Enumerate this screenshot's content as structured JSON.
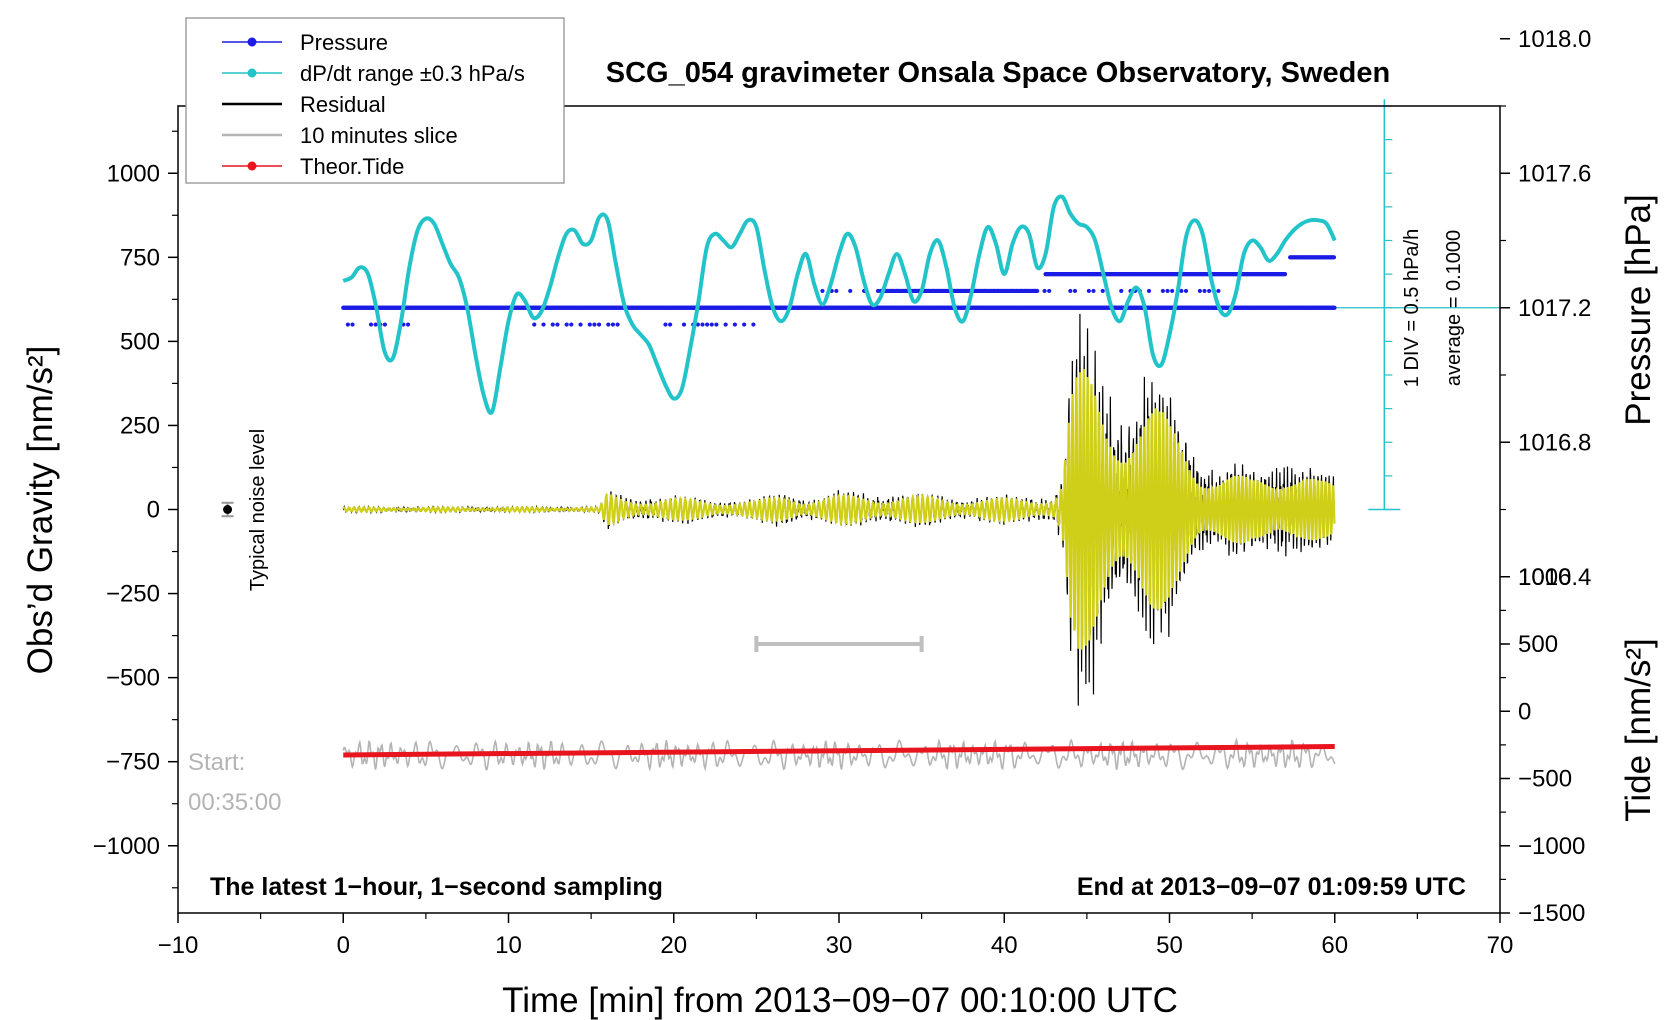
{
  "chart_data": {
    "type": "line",
    "title": "SCG_054 gravimeter Onsala Space Observatory, Sweden",
    "xlabel": "Time [min] from 2013−09−07 00:10:00 UTC",
    "ylabel_left": "Obs’d Gravity [nm/s²]",
    "ylabel_right_top": "Pressure [hPa]",
    "ylabel_right_bottom": "Tide [nm/s²]",
    "xlim": [
      -10,
      70
    ],
    "ylim": [
      -1200,
      1200
    ],
    "x_ticks": [
      {
        "v": -10,
        "label": "−10"
      },
      {
        "v": 0,
        "label": "0"
      },
      {
        "v": 10,
        "label": "10"
      },
      {
        "v": 20,
        "label": "20"
      },
      {
        "v": 30,
        "label": "30"
      },
      {
        "v": 40,
        "label": "40"
      },
      {
        "v": 50,
        "label": "50"
      },
      {
        "v": 60,
        "label": "60"
      },
      {
        "v": 70,
        "label": "70"
      }
    ],
    "y_ticks_left": [
      {
        "v": 1000,
        "label": "1000"
      },
      {
        "v": 750,
        "label": "750"
      },
      {
        "v": 500,
        "label": "500"
      },
      {
        "v": 250,
        "label": "250"
      },
      {
        "v": 0,
        "label": "0"
      },
      {
        "v": -250,
        "label": "−250"
      },
      {
        "v": -500,
        "label": "−500"
      },
      {
        "v": -750,
        "label": "−750"
      },
      {
        "v": -1000,
        "label": "−1000"
      }
    ],
    "y_ticks_pressure": [
      {
        "v": 1018.0,
        "label": "1018.0"
      },
      {
        "v": 1017.6,
        "label": "1017.6"
      },
      {
        "v": 1017.2,
        "label": "1017.2"
      },
      {
        "v": 1016.8,
        "label": "1016.8"
      },
      {
        "v": 1016.4,
        "label": "1016.4"
      }
    ],
    "pressure_map": {
      "ref_hpa": 1017.2,
      "ref_gravity": 600,
      "gravity_per_hpa": 1000
    },
    "y_ticks_tide": [
      {
        "v": 1000,
        "label": "1000"
      },
      {
        "v": 500,
        "label": "500"
      },
      {
        "v": 0,
        "label": "0"
      },
      {
        "v": -500,
        "label": "−500"
      },
      {
        "v": -1000,
        "label": "−1000"
      },
      {
        "v": -1500,
        "label": "−1500"
      }
    ],
    "tide_map": {
      "tide_zero_gravity": -600,
      "gravity_per_tide": 0.4
    },
    "dpdt_scale": {
      "label": "1 DIV = 0.5 hPa/h",
      "average_label": "average = 0.1000",
      "x": 63,
      "y_bottom": 0,
      "y_top": 1220,
      "reference_level": 600,
      "ticks": [
        0,
        100,
        200,
        300,
        400,
        500,
        600,
        700,
        800,
        900,
        1000,
        1100,
        1200
      ]
    },
    "series": [
      {
        "name": "dP/dt range ±0.3 hPa/s",
        "color": "#22c3c9",
        "x": [
          0,
          0.5,
          1,
          1.5,
          2,
          2.5,
          3,
          3.5,
          4,
          4.5,
          5,
          5.5,
          6,
          6.5,
          7,
          7.5,
          8,
          8.5,
          9,
          9.5,
          10,
          10.5,
          11,
          11.5,
          12,
          12.5,
          13,
          13.5,
          14,
          14.5,
          15,
          15.5,
          16,
          16.5,
          17,
          17.5,
          18,
          18.5,
          19,
          19.5,
          20,
          20.5,
          21,
          21.5,
          22,
          22.5,
          23,
          23.5,
          24,
          24.5,
          25,
          25.5,
          26,
          26.5,
          27,
          27.5,
          28,
          28.5,
          29,
          29.5,
          30,
          30.5,
          31,
          31.5,
          32,
          32.5,
          33,
          33.5,
          34,
          34.5,
          35,
          35.5,
          36,
          36.5,
          37,
          37.5,
          38,
          38.5,
          39,
          39.5,
          40,
          40.5,
          41,
          41.5,
          42,
          42.5,
          43,
          43.5,
          44,
          44.5,
          45,
          45.5,
          46,
          46.5,
          47,
          47.5,
          48,
          48.5,
          49,
          49.5,
          50,
          50.5,
          51,
          51.5,
          52,
          52.5,
          53,
          53.5,
          54,
          54.5,
          55,
          55.5,
          56,
          56.5,
          57,
          57.5,
          58,
          58.5,
          59,
          59.5,
          60
        ],
        "y": [
          680,
          690,
          720,
          700,
          600,
          470,
          450,
          560,
          720,
          830,
          865,
          850,
          790,
          730,
          690,
          600,
          460,
          340,
          290,
          420,
          560,
          640,
          620,
          570,
          590,
          660,
          750,
          820,
          830,
          790,
          800,
          870,
          860,
          730,
          610,
          550,
          520,
          490,
          430,
          370,
          330,
          360,
          480,
          620,
          780,
          820,
          800,
          780,
          820,
          860,
          840,
          710,
          600,
          560,
          600,
          700,
          760,
          670,
          610,
          670,
          760,
          820,
          780,
          680,
          610,
          630,
          700,
          760,
          700,
          620,
          650,
          760,
          800,
          720,
          600,
          560,
          640,
          760,
          840,
          790,
          700,
          790,
          840,
          820,
          720,
          760,
          900,
          930,
          880,
          850,
          840,
          800,
          700,
          600,
          560,
          620,
          660,
          600,
          460,
          430,
          520,
          650,
          810,
          860,
          820,
          690,
          600,
          580,
          640,
          760,
          800,
          780,
          740,
          760,
          800,
          830,
          850,
          860,
          860,
          850,
          800
        ]
      },
      {
        "name": "Theor.Tide",
        "color": "#e8141e",
        "x": [
          0,
          60
        ],
        "y": [
          -730,
          -705
        ]
      }
    ],
    "pressure_levels": [
      {
        "y": 600,
        "x_start": 0,
        "x_end": 60,
        "sparse": false
      },
      {
        "y": 550,
        "x_start": 0,
        "x_end": 5,
        "sparse": true
      },
      {
        "y": 550,
        "x_start": 11,
        "x_end": 17,
        "sparse": true
      },
      {
        "y": 550,
        "x_start": 19.5,
        "x_end": 25,
        "sparse": true
      },
      {
        "y": 650,
        "x_start": 29,
        "x_end": 43,
        "sparse": true
      },
      {
        "y": 650,
        "x_start": 32.5,
        "x_end": 42,
        "sparse": false
      },
      {
        "y": 700,
        "x_start": 42.5,
        "x_end": 57,
        "sparse": false
      },
      {
        "y": 650,
        "x_start": 44,
        "x_end": 53,
        "sparse": true
      },
      {
        "y": 750,
        "x_start": 57.3,
        "x_end": 60,
        "sparse": false
      }
    ],
    "residual_envelope": {
      "x": [
        0,
        15.5,
        16,
        17,
        25,
        26,
        27,
        28,
        30,
        32,
        34,
        36,
        38,
        40,
        42,
        43,
        43.5,
        44,
        44.5,
        45,
        45.5,
        46,
        47,
        48,
        49,
        50,
        51,
        52,
        53,
        55,
        57,
        58,
        59,
        60
      ],
      "amp": [
        8,
        8,
        60,
        45,
        30,
        45,
        60,
        40,
        50,
        55,
        50,
        45,
        40,
        40,
        45,
        50,
        120,
        450,
        530,
        520,
        500,
        460,
        440,
        420,
        400,
        340,
        300,
        200,
        140,
        120,
        200,
        150,
        110,
        100
      ]
    },
    "slice_bar": {
      "x0": 25,
      "x1": 35,
      "y": -400,
      "color": "#bfbfbf"
    },
    "slice_trace": {
      "y_center": -730,
      "amp": 45,
      "color": "#b4b4b4"
    },
    "noise_marker": {
      "x": -7,
      "y": 0,
      "err": 20,
      "label": "Typical noise level"
    },
    "start_label": [
      "Start:",
      "00:35:00"
    ],
    "bottom_left_note": "The latest 1−hour, 1−second sampling",
    "bottom_right_note": "End at 2013−09−07 01:09:59 UTC",
    "legend": {
      "position": "top-left",
      "entries": [
        {
          "label": "Pressure",
          "color": "#1c1ce6",
          "marker": true
        },
        {
          "label": "dP/dt range ±0.3 hPa/s",
          "color": "#22c3c9",
          "marker": true
        },
        {
          "label": "Residual",
          "color": "#000000",
          "marker": false
        },
        {
          "label": "10 minutes slice",
          "color": "#b4b4b4",
          "marker": false
        },
        {
          "label": "Theor.Tide",
          "color": "#e8141e",
          "marker": true
        }
      ]
    },
    "colors": {
      "residual": "#000000",
      "filtered": "#cfcf1a",
      "pressure": "#1c1ce6",
      "dpdt": "#22c3c9",
      "tide": "#e8141e",
      "slice": "#b4b4b4",
      "start": "#b4b4b4"
    }
  }
}
